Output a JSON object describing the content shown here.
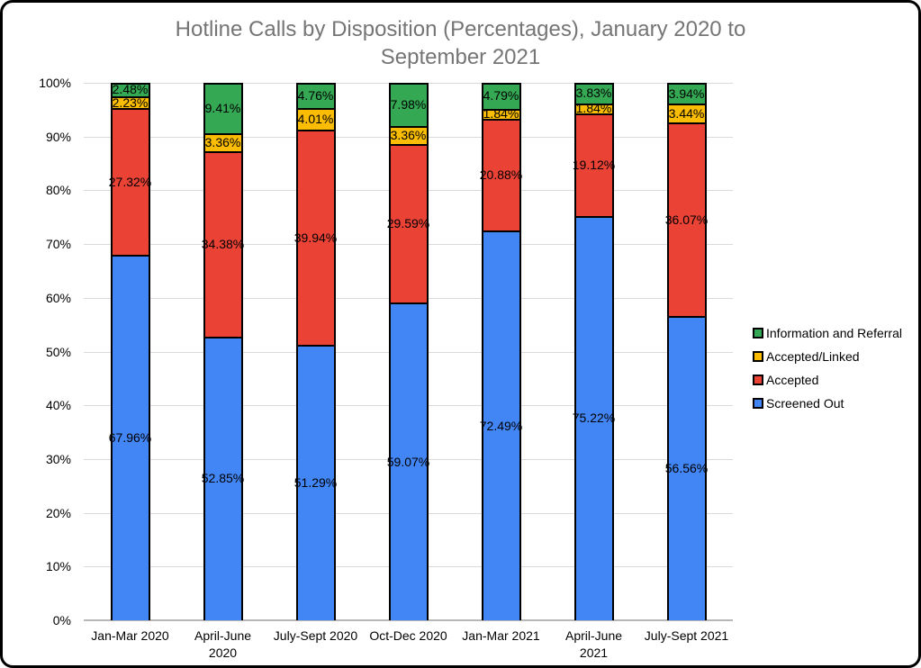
{
  "chart": {
    "title": "Hotline Calls by Disposition (Percentages), January 2020 to\nSeptember 2021",
    "title_color": "#757575"
  },
  "chart_data": {
    "type": "bar",
    "stacked": true,
    "title": "Hotline Calls by Disposition (Percentages), January 2020 to September 2021",
    "categories": [
      "Jan-Mar 2020",
      "April-June\n2020",
      "July-Sept 2020",
      "Oct-Dec 2020",
      "Jan-Mar 2021",
      "April-June\n2021",
      "July-Sept 2021"
    ],
    "series": [
      {
        "name": "Screened Out",
        "color": "#4285F4",
        "values": [
          67.96,
          52.85,
          51.29,
          59.07,
          72.49,
          75.22,
          56.56
        ]
      },
      {
        "name": "Accepted",
        "color": "#EA4335",
        "values": [
          27.32,
          34.38,
          39.94,
          29.59,
          20.88,
          19.12,
          36.07
        ]
      },
      {
        "name": "Accepted/Linked",
        "color": "#FBBC04",
        "values": [
          2.23,
          3.36,
          4.01,
          3.36,
          1.84,
          1.84,
          3.44
        ]
      },
      {
        "name": "Information and Referral",
        "color": "#34A853",
        "values": [
          2.48,
          9.41,
          4.76,
          7.98,
          4.79,
          3.83,
          3.94
        ]
      }
    ],
    "data_label_format": "0.00%",
    "xlabel": "",
    "ylabel": "",
    "ylim": [
      0,
      100
    ],
    "yticks": [
      "0%",
      "10%",
      "20%",
      "30%",
      "40%",
      "50%",
      "60%",
      "70%",
      "80%",
      "90%",
      "100%"
    ],
    "grid": "horizontal",
    "legend_position": "right",
    "legend_order": [
      "Information and Referral",
      "Accepted/Linked",
      "Accepted",
      "Screened Out"
    ]
  }
}
